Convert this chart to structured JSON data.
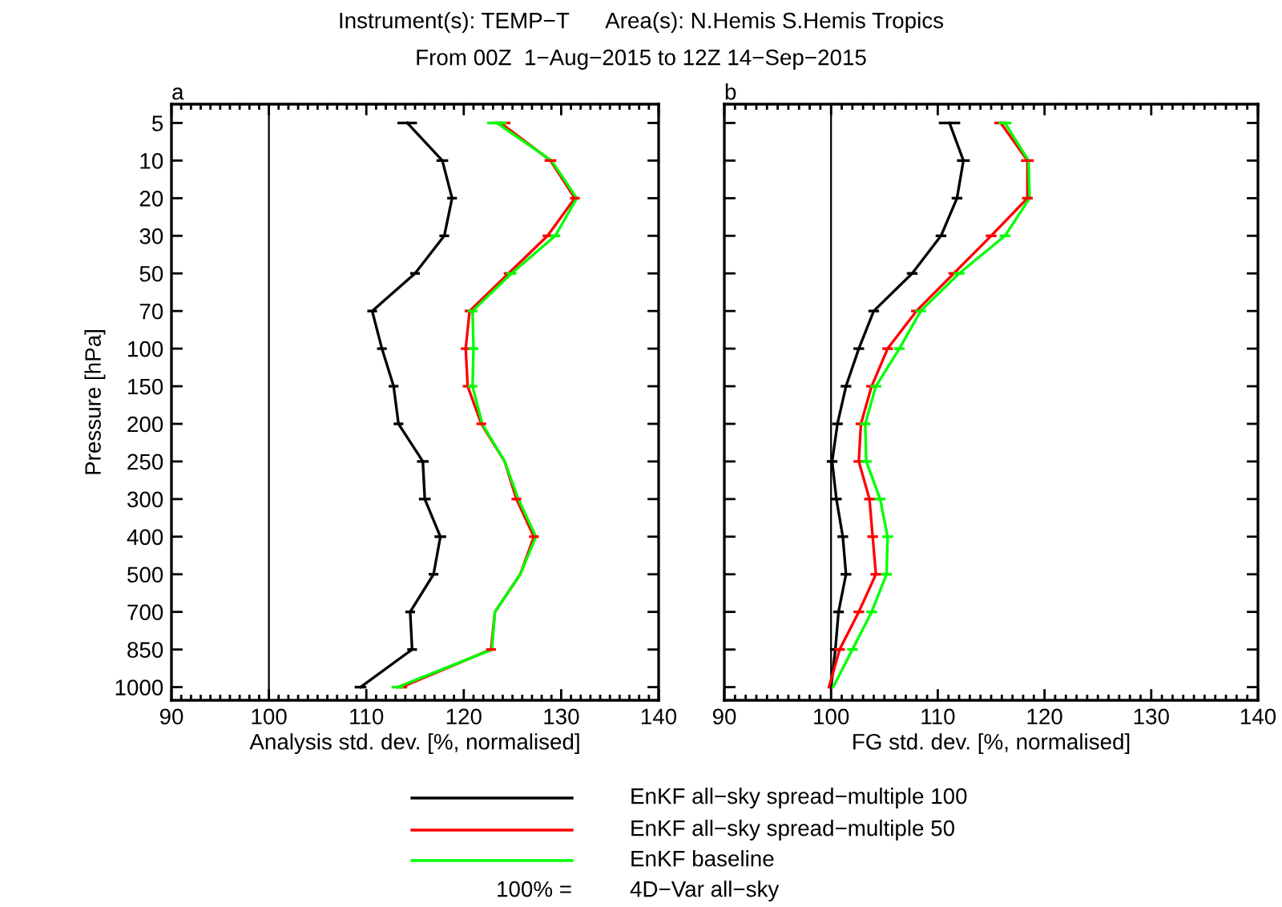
{
  "chart_data": [
    {
      "type": "line",
      "orientation": "horizontal",
      "title": "a",
      "xlabel": "Analysis std. dev. [%, normalised]",
      "ylabel": "Pressure [hPa]",
      "annotations": [
        "Instrument(s): TEMP−T      Area(s): N.Hemis S.Hemis Tropics",
        "From 00Z  1−Aug−2015 to 12Z 14−Sep−2015",
        "100% =",
        "4D−Var all−sky"
      ],
      "categories": [
        "5",
        "10",
        "20",
        "30",
        "50",
        "70",
        "100",
        "150",
        "200",
        "250",
        "300",
        "400",
        "500",
        "700",
        "850",
        "1000"
      ],
      "series": [
        {
          "name": "EnKF all−sky spread−multiple 100",
          "color": "#000000",
          "values": [
            114.2,
            117.8,
            118.8,
            118.0,
            115.0,
            110.6,
            111.6,
            112.8,
            113.3,
            115.8,
            116.0,
            117.6,
            116.9,
            114.5,
            114.7,
            109.4
          ],
          "errors": [
            1.0,
            0.6,
            0.5,
            0.5,
            0.5,
            0.5,
            0.5,
            0.5,
            0.5,
            0.6,
            0.6,
            0.6,
            0.5,
            0.5,
            0.5,
            0.6
          ]
        },
        {
          "name": "EnKF all−sky spread−multiple 50",
          "color": "#ff0000",
          "values": [
            123.8,
            128.9,
            131.4,
            128.6,
            124.6,
            120.6,
            120.2,
            120.4,
            121.8,
            124.2,
            125.4,
            127.2,
            125.8,
            123.2,
            122.8,
            113.6
          ],
          "errors": [
            1.0,
            0.6,
            0.5,
            0.5,
            0.5,
            0.5,
            0.5,
            0.5,
            0.5,
            null,
            0.5,
            0.5,
            null,
            null,
            0.5,
            0.6
          ]
        },
        {
          "name": "EnKF baseline",
          "color": "#00ff00",
          "values": [
            123.4,
            129.0,
            131.6,
            129.4,
            124.9,
            120.9,
            121.0,
            120.9,
            121.9,
            124.2,
            125.6,
            127.4,
            125.8,
            123.2,
            122.9,
            113.2
          ],
          "errors": [
            1.0,
            null,
            null,
            0.5,
            0.5,
            0.5,
            0.5,
            0.5,
            null,
            null,
            null,
            null,
            null,
            null,
            null,
            0.6
          ]
        }
      ],
      "xlim": [
        90,
        140
      ],
      "xticks": [
        90,
        100,
        110,
        120,
        130,
        140
      ],
      "ref_lines": [
        {
          "axis": "x",
          "value": 100,
          "color": "#000000"
        }
      ],
      "legend": "bottom"
    },
    {
      "type": "line",
      "orientation": "horizontal",
      "title": "b",
      "xlabel": "FG std. dev. [%, normalised]",
      "categories": [
        "5",
        "10",
        "20",
        "30",
        "50",
        "70",
        "100",
        "150",
        "200",
        "250",
        "300",
        "400",
        "500",
        "700",
        "850",
        "1000"
      ],
      "series": [
        {
          "color": "#000000",
          "values": [
            111.1,
            112.4,
            111.8,
            110.3,
            107.6,
            104.0,
            102.6,
            101.4,
            100.6,
            100.1,
            100.5,
            101.1,
            101.4,
            100.7,
            100.4,
            100.0
          ],
          "errors": [
            1.0,
            0.6,
            0.5,
            0.5,
            0.5,
            0.5,
            0.5,
            0.5,
            0.5,
            0.5,
            0.5,
            0.5,
            0.5,
            0.5,
            0.5,
            null
          ]
        },
        {
          "color": "#ff0000",
          "values": [
            115.9,
            118.4,
            118.4,
            115.0,
            111.5,
            108.0,
            105.3,
            103.8,
            102.8,
            102.6,
            103.6,
            103.9,
            104.2,
            102.6,
            100.8,
            99.8
          ],
          "errors": [
            0.6,
            0.6,
            0.5,
            0.5,
            0.5,
            0.5,
            0.5,
            0.5,
            0.5,
            0.5,
            0.5,
            0.5,
            0.5,
            0.5,
            0.5,
            null
          ]
        },
        {
          "color": "#00ff00",
          "values": [
            116.3,
            118.5,
            118.6,
            116.3,
            112.0,
            108.4,
            106.4,
            104.2,
            103.2,
            103.3,
            104.6,
            105.3,
            105.2,
            103.8,
            102.0,
            100.2
          ],
          "errors": [
            0.6,
            null,
            null,
            0.5,
            0.5,
            0.5,
            0.5,
            0.5,
            0.5,
            0.5,
            0.5,
            0.5,
            0.5,
            0.5,
            0.5,
            null
          ]
        }
      ],
      "xlim": [
        90,
        140
      ],
      "xticks": [
        90,
        100,
        110,
        120,
        130,
        140
      ],
      "ref_lines": [
        {
          "axis": "x",
          "value": 100,
          "color": "#000000"
        }
      ],
      "tick_labels": "x"
    }
  ]
}
